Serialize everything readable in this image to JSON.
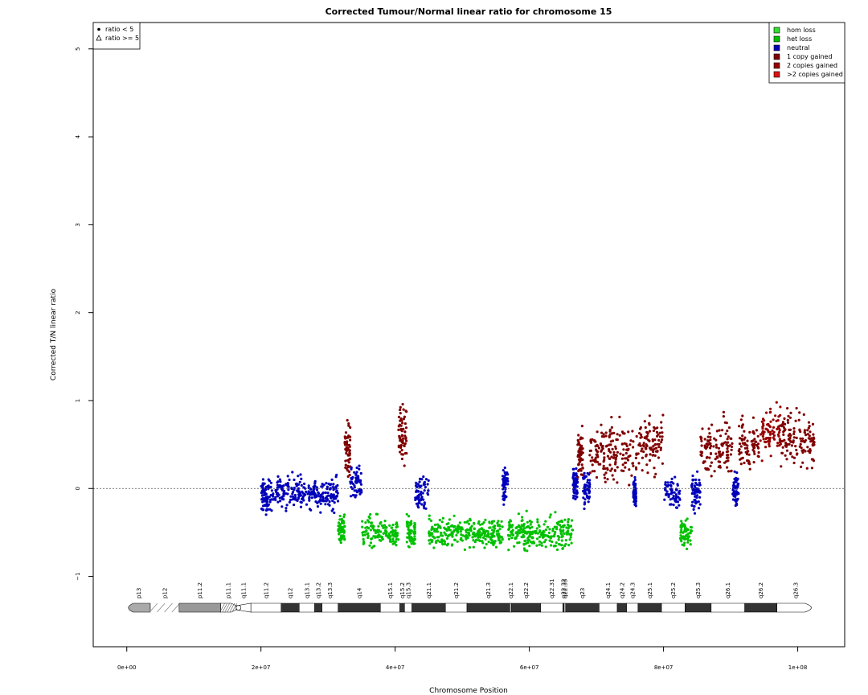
{
  "chart_data": {
    "type": "scatter",
    "title": "Corrected Tumour/Normal linear ratio for chromosome  15",
    "xlabel": "Chromosome Position",
    "ylabel": "Corrected T/N linear ratio",
    "xlim": [
      -5000000,
      107000000
    ],
    "ylim": [
      -1.8,
      5.3
    ],
    "x_ticks": [
      0,
      20000000,
      40000000,
      60000000,
      80000000,
      100000000
    ],
    "x_tick_labels": [
      "0e+00",
      "2e+07",
      "4e+07",
      "6e+07",
      "8e+07",
      "1e+08"
    ],
    "y_ticks": [
      -1,
      0,
      1,
      2,
      3,
      4,
      5
    ],
    "y_tick_labels": [
      "−1",
      "0",
      "1",
      "2",
      "3",
      "4",
      "5"
    ],
    "reference_line": 0,
    "grid": false,
    "shape_legend": {
      "placement": "top-left",
      "entries": [
        {
          "symbol": "dot",
          "label": "ratio < 5"
        },
        {
          "symbol": "triangle",
          "label": "ratio >= 5"
        }
      ]
    },
    "legend": {
      "placement": "top-right",
      "entries": [
        {
          "label": "hom loss",
          "color": "#33dd33"
        },
        {
          "label": "het loss",
          "color": "#00c000"
        },
        {
          "label": "neutral",
          "color": "#0000bb"
        },
        {
          "label": "1 copy gained",
          "color": "#800000"
        },
        {
          "label": "2 copies gained",
          "color": "#990000"
        },
        {
          "label": ">2 copies gained",
          "color": "#dd1111"
        }
      ]
    },
    "segments": [
      {
        "state": "neutral",
        "start": 20000000,
        "end": 21000000,
        "mean": -0.1
      },
      {
        "state": "neutral",
        "start": 21000000,
        "end": 31500000,
        "mean": -0.05
      },
      {
        "state": "het loss",
        "start": 31500000,
        "end": 32500000,
        "mean": -0.45
      },
      {
        "state": "1 copy gained",
        "start": 32500000,
        "end": 33300000,
        "mean": 0.45
      },
      {
        "state": "neutral",
        "start": 33300000,
        "end": 35000000,
        "mean": 0.05
      },
      {
        "state": "het loss",
        "start": 35000000,
        "end": 40500000,
        "mean": -0.5
      },
      {
        "state": "1 copy gained",
        "start": 40500000,
        "end": 41700000,
        "mean": 0.6
      },
      {
        "state": "het loss",
        "start": 41700000,
        "end": 43000000,
        "mean": -0.5
      },
      {
        "state": "neutral",
        "start": 43000000,
        "end": 45000000,
        "mean": -0.05
      },
      {
        "state": "het loss",
        "start": 45000000,
        "end": 56000000,
        "mean": -0.5
      },
      {
        "state": "neutral",
        "start": 56000000,
        "end": 56800000,
        "mean": 0.05
      },
      {
        "state": "het loss",
        "start": 56800000,
        "end": 66500000,
        "mean": -0.5
      },
      {
        "state": "neutral",
        "start": 66500000,
        "end": 67200000,
        "mean": 0.05
      },
      {
        "state": "1 copy gained",
        "start": 67200000,
        "end": 68000000,
        "mean": 0.35
      },
      {
        "state": "neutral",
        "start": 68000000,
        "end": 69000000,
        "mean": 0.0
      },
      {
        "state": "1 copy gained",
        "start": 69000000,
        "end": 75500000,
        "mean": 0.4
      },
      {
        "state": "neutral",
        "start": 75500000,
        "end": 75900000,
        "mean": -0.05
      },
      {
        "state": "1 copy gained",
        "start": 75900000,
        "end": 80000000,
        "mean": 0.5
      },
      {
        "state": "neutral",
        "start": 80000000,
        "end": 82500000,
        "mean": -0.05
      },
      {
        "state": "het loss",
        "start": 82500000,
        "end": 84200000,
        "mean": -0.5
      },
      {
        "state": "neutral",
        "start": 84200000,
        "end": 85500000,
        "mean": -0.05
      },
      {
        "state": "1 copy gained",
        "start": 85500000,
        "end": 90300000,
        "mean": 0.45
      },
      {
        "state": "neutral",
        "start": 90300000,
        "end": 91200000,
        "mean": 0.0
      },
      {
        "state": "1 copy gained",
        "start": 91200000,
        "end": 94400000,
        "mean": 0.5
      },
      {
        "state": "2 copies gained",
        "start": 94400000,
        "end": 97500000,
        "mean": 0.65
      },
      {
        "state": "1 copy gained",
        "start": 97500000,
        "end": 102500000,
        "mean": 0.55
      }
    ],
    "ideogram": {
      "bands": [
        {
          "name": "p13",
          "start": 0,
          "end": 3500000,
          "stain": "acen-cap"
        },
        {
          "name": "p12",
          "start": 3500000,
          "end": 7800000,
          "stain": "stalk"
        },
        {
          "name": "p11.2",
          "start": 7800000,
          "end": 14000000,
          "stain": "gvar"
        },
        {
          "name": "p11.1",
          "start": 14000000,
          "end": 16300000,
          "stain": "stalk-hatch"
        },
        {
          "name": "q11.1",
          "start": 16300000,
          "end": 18500000,
          "stain": "acen"
        },
        {
          "name": "q11.2",
          "start": 18500000,
          "end": 23000000,
          "stain": "gneg"
        },
        {
          "name": "q12",
          "start": 23000000,
          "end": 25700000,
          "stain": "gpos"
        },
        {
          "name": "q13.1",
          "start": 25700000,
          "end": 28000000,
          "stain": "gneg"
        },
        {
          "name": "q13.2",
          "start": 28000000,
          "end": 29100000,
          "stain": "gpos"
        },
        {
          "name": "q13.3",
          "start": 29100000,
          "end": 31500000,
          "stain": "gneg"
        },
        {
          "name": "q14",
          "start": 31500000,
          "end": 37800000,
          "stain": "gpos"
        },
        {
          "name": "q15.1",
          "start": 37800000,
          "end": 40700000,
          "stain": "gneg"
        },
        {
          "name": "q15.2",
          "start": 40700000,
          "end": 41400000,
          "stain": "gpos"
        },
        {
          "name": "q15.3",
          "start": 41400000,
          "end": 42500000,
          "stain": "gneg"
        },
        {
          "name": "q21.1",
          "start": 42500000,
          "end": 47500000,
          "stain": "gpos"
        },
        {
          "name": "q21.2",
          "start": 47500000,
          "end": 50700000,
          "stain": "gneg"
        },
        {
          "name": "q21.3",
          "start": 50700000,
          "end": 57100000,
          "stain": "gpos"
        },
        {
          "name": "q22.1",
          "start": 57100000,
          "end": 57300000,
          "stain": "gneg"
        },
        {
          "name": "q22.2",
          "start": 57300000,
          "end": 61700000,
          "stain": "gpos"
        },
        {
          "name": "q22.31",
          "start": 61700000,
          "end": 65000000,
          "stain": "gneg"
        },
        {
          "name": "q22.32",
          "start": 65000000,
          "end": 65200000,
          "stain": "gpos"
        },
        {
          "name": "q22.33",
          "start": 65200000,
          "end": 65400000,
          "stain": "gneg"
        },
        {
          "name": "q23",
          "start": 65400000,
          "end": 70400000,
          "stain": "gpos"
        },
        {
          "name": "q24.1",
          "start": 70400000,
          "end": 73100000,
          "stain": "gneg"
        },
        {
          "name": "q24.2",
          "start": 73100000,
          "end": 74500000,
          "stain": "gpos"
        },
        {
          "name": "q24.3",
          "start": 74500000,
          "end": 76200000,
          "stain": "gneg"
        },
        {
          "name": "q25.1",
          "start": 76200000,
          "end": 79700000,
          "stain": "gpos"
        },
        {
          "name": "q25.2",
          "start": 79700000,
          "end": 83200000,
          "stain": "gneg"
        },
        {
          "name": "q25.3",
          "start": 83200000,
          "end": 87100000,
          "stain": "gpos"
        },
        {
          "name": "q26.1",
          "start": 87100000,
          "end": 92100000,
          "stain": "gneg"
        },
        {
          "name": "q26.2",
          "start": 92100000,
          "end": 96900000,
          "stain": "gpos"
        },
        {
          "name": "q26.3",
          "start": 96900000,
          "end": 102500000,
          "stain": "qter"
        }
      ]
    }
  }
}
